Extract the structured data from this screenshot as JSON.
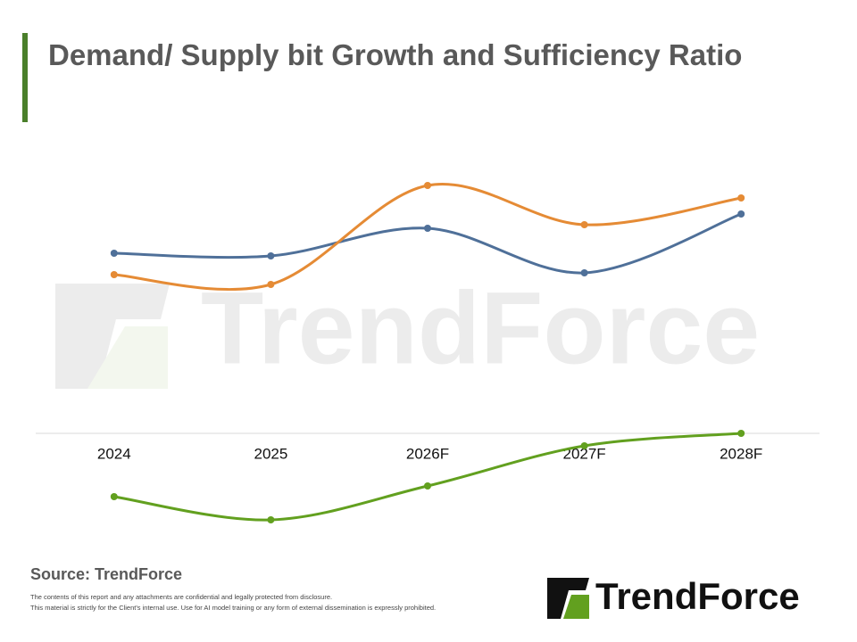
{
  "title": "Demand/ Supply bit Growth and Sufficiency Ratio",
  "watermark": "TrendForce",
  "source": "Source: TrendForce",
  "disclaimer": [
    "The contents of this report and any attachments are confidential and legally protected from disclosure.",
    "This material is strictly for the Client's internal use. Use for AI model training or any form of external dissemination is expressly prohibited."
  ],
  "logo_text": "TrendForce",
  "chart_data": {
    "type": "line",
    "categories": [
      "2024",
      "2025",
      "2026F",
      "2027F",
      "2028F"
    ],
    "series": [
      {
        "color": "#4f7099",
        "values": [
          20.2,
          19.9,
          23.0,
          18.0,
          24.6
        ]
      },
      {
        "color": "#e58b35",
        "values": [
          17.8,
          16.7,
          27.8,
          23.4,
          26.4
        ]
      },
      {
        "color": "#62a01f",
        "values": [
          -7.1,
          -9.7,
          -5.9,
          -1.4,
          0.0
        ]
      }
    ],
    "ylim": [
      -12,
      30
    ]
  }
}
